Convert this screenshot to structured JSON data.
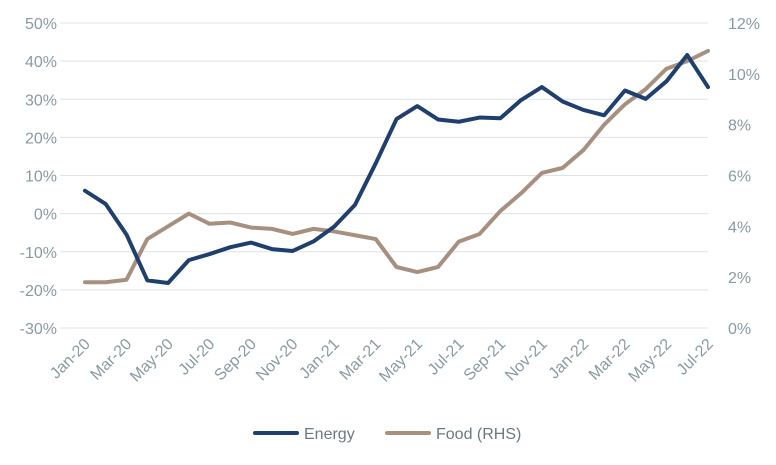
{
  "chart_data": {
    "type": "line",
    "title": "",
    "xlabel": "",
    "ylabel": "",
    "y2label": "",
    "ylim": [
      -30,
      50
    ],
    "y2lim": [
      0,
      12
    ],
    "y_ticks": [
      "50%",
      "40%",
      "30%",
      "20%",
      "10%",
      "0%",
      "-10%",
      "-20%",
      "-30%"
    ],
    "y2_ticks": [
      "12%",
      "10%",
      "8%",
      "6%",
      "4%",
      "2%",
      "0%"
    ],
    "x_ticks": [
      "Jan-20",
      "Mar-20",
      "May-20",
      "Jul-20",
      "Sep-20",
      "Nov-20",
      "Jan-21",
      "Mar-21",
      "May-21",
      "Jul-21",
      "Sep-21",
      "Nov-21",
      "Jan-22",
      "Mar-22",
      "May-22",
      "Jul-22"
    ],
    "categories": [
      "Jan-20",
      "Feb-20",
      "Mar-20",
      "Apr-20",
      "May-20",
      "Jun-20",
      "Jul-20",
      "Aug-20",
      "Sep-20",
      "Oct-20",
      "Nov-20",
      "Dec-20",
      "Jan-21",
      "Feb-21",
      "Mar-21",
      "Apr-21",
      "May-21",
      "Jun-21",
      "Jul-21",
      "Aug-21",
      "Sep-21",
      "Oct-21",
      "Nov-21",
      "Dec-21",
      "Jan-22",
      "Feb-22",
      "Mar-22",
      "Apr-22",
      "May-22",
      "Jun-22",
      "Jul-22"
    ],
    "series": [
      {
        "name": "Energy",
        "axis": "left",
        "color": "#1f3f6e",
        "values": [
          6,
          2.5,
          -5.5,
          -17.5,
          -18.2,
          -12.2,
          -10.6,
          -8.8,
          -7.6,
          -9.3,
          -9.8,
          -7.3,
          -3.4,
          2.3,
          13.2,
          24.8,
          28.2,
          24.7,
          24.1,
          25.2,
          25.0,
          29.8,
          33.2,
          29.4,
          27.2,
          25.8,
          32.3,
          30.1,
          34.7,
          41.6,
          33.2
        ]
      },
      {
        "name": "Food (RHS)",
        "axis": "right",
        "color": "#a89080",
        "values": [
          1.8,
          1.8,
          1.9,
          3.5,
          4.0,
          4.5,
          4.1,
          4.15,
          3.95,
          3.9,
          3.7,
          3.9,
          3.8,
          3.65,
          3.5,
          2.4,
          2.2,
          2.4,
          3.4,
          3.7,
          4.6,
          5.3,
          6.1,
          6.3,
          7.0,
          8.0,
          8.8,
          9.4,
          10.2,
          10.5,
          10.9
        ]
      }
    ],
    "legend": {
      "position": "bottom",
      "entries": [
        "Energy",
        "Food (RHS)"
      ]
    },
    "grid": true
  }
}
